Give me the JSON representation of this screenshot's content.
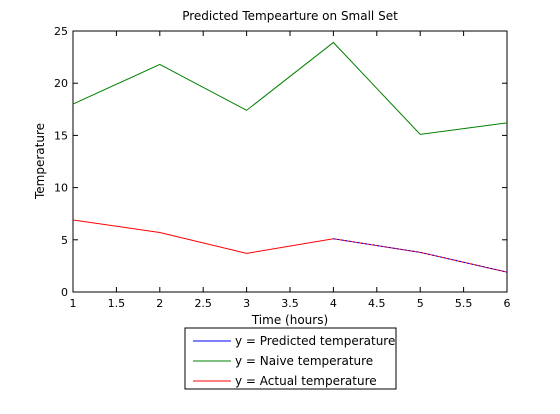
{
  "chart_data": {
    "type": "line",
    "title": "Predicted Tempearture on Small Set",
    "xlabel": "Time (hours)",
    "ylabel": "Temperature",
    "xlim": [
      1,
      6
    ],
    "ylim": [
      0,
      25
    ],
    "x_ticks": [
      "1",
      "1.5",
      "2",
      "2.5",
      "3",
      "3.5",
      "4",
      "4.5",
      "5",
      "5.5",
      "6"
    ],
    "y_ticks": [
      "0",
      "5",
      "10",
      "15",
      "20",
      "25"
    ],
    "grid": false,
    "legend_position": "bottom-center outside",
    "x": [
      1,
      2,
      3,
      4,
      5,
      6
    ],
    "series": [
      {
        "name": "y = Predicted temperature",
        "color": "#0000ff",
        "x": [
          4,
          5,
          6
        ],
        "values": [
          5.1,
          3.8,
          1.9
        ]
      },
      {
        "name": "y = Naive temperature",
        "color": "#008000",
        "x": [
          1,
          2,
          3,
          4,
          5,
          6
        ],
        "values": [
          18.0,
          21.8,
          17.4,
          23.9,
          15.1,
          16.2
        ]
      },
      {
        "name": "y = Actual temperature",
        "color": "#ff0000",
        "x": [
          1,
          2,
          3,
          4,
          5,
          6
        ],
        "values": [
          6.9,
          5.7,
          3.7,
          5.1,
          3.8,
          1.9
        ]
      }
    ]
  }
}
